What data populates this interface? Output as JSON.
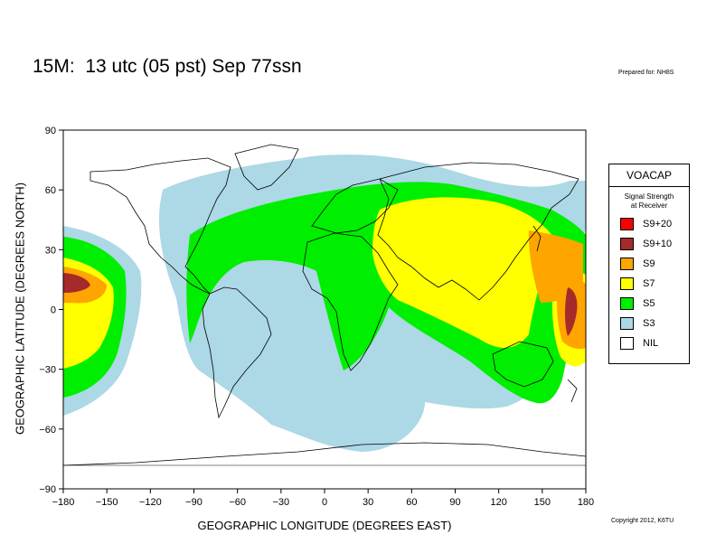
{
  "header": {
    "title": "15M:  13 utc (05 pst) Sep 77ssn",
    "prepared": "Prepared for: NH8S",
    "copyright": "Copyright 2012, K6TU"
  },
  "axes": {
    "xlabel": "GEOGRAPHIC LONGITUDE (DEGREES EAST)",
    "ylabel": "GEOGRAPHIC LATITUDE (DEGREES NORTH)",
    "xlim": [
      -180,
      180
    ],
    "ylim": [
      -90,
      90
    ],
    "xticks": [
      "−180",
      "−150",
      "−120",
      "−90",
      "−60",
      "−30",
      "0",
      "30",
      "60",
      "90",
      "120",
      "150",
      "180"
    ],
    "yticks": [
      "90",
      "60",
      "30",
      "0",
      "−30",
      "−60",
      "−90"
    ]
  },
  "legend": {
    "title": "VOACAP",
    "subtitle_line1": "Signal Strength",
    "subtitle_line2": "at Receiver",
    "items": [
      {
        "label": "S9+20",
        "color": "#ff0000"
      },
      {
        "label": "S9+10",
        "color": "#a52a2a"
      },
      {
        "label": "S9",
        "color": "#ffa500"
      },
      {
        "label": "S7",
        "color": "#ffff00"
      },
      {
        "label": "S5",
        "color": "#00ee00"
      },
      {
        "label": "S3",
        "color": "#add8e6"
      },
      {
        "label": "NIL",
        "color": "#ffffff"
      }
    ]
  }
}
